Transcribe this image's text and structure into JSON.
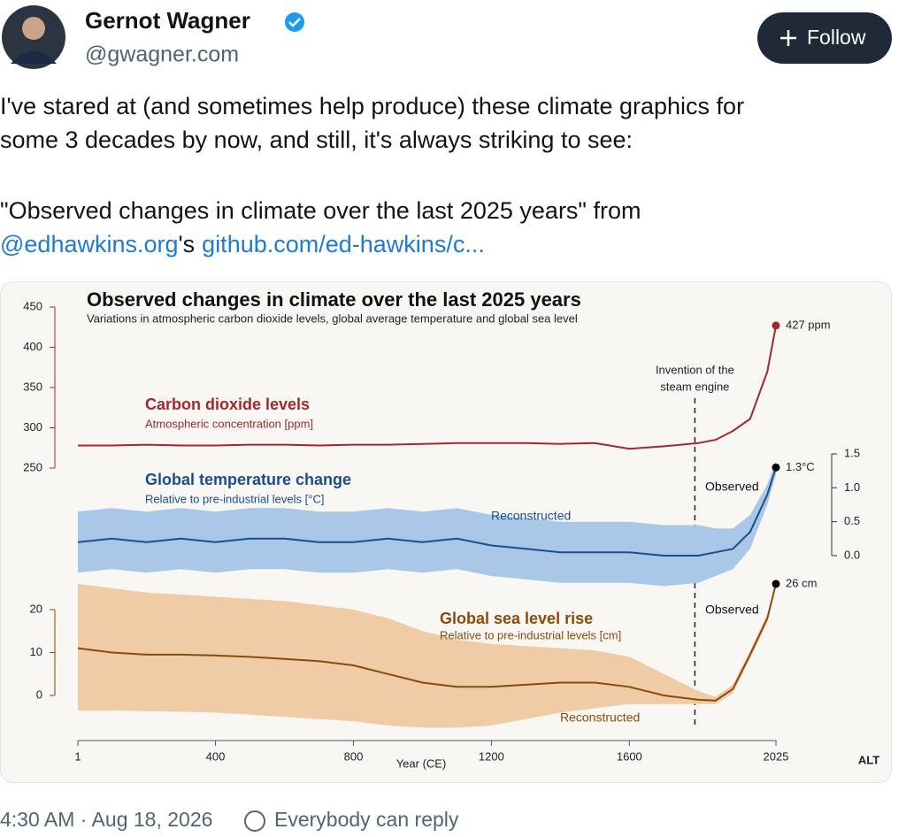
{
  "post": {
    "author": "Gernot Wagner",
    "handle": "@gwagner.com",
    "follow_button": "Follow",
    "body_lines": [
      "I've stared at (and sometimes help produce) these climate graphics for",
      "some 3 decades by now, and still, it's always striking to see:"
    ],
    "quote_line": "\"Observed changes in climate over the last 2025 years\" from",
    "link_line": [
      "@edhawkins.org",
      "'s",
      "github.com/ed-hawkins/c..."
    ],
    "timestamp": "4:30 AM · Aug 18, 2026",
    "reply_setting": "Everybody can reply"
  },
  "chart_data": {
    "type": "line",
    "title": "Observed changes in climate over the last 2025 years",
    "subtitle": "Variations in atmospheric carbon dioxide levels, global average temperature and global sea level",
    "x_label": "Year (CE)",
    "alt_badge": "ALT",
    "x": [
      1,
      100,
      200,
      300,
      400,
      500,
      600,
      700,
      800,
      900,
      1000,
      1100,
      1200,
      1300,
      1400,
      1500,
      1600,
      1700,
      1800,
      1850,
      1900,
      1950,
      2000,
      2025
    ],
    "xlim": [
      1,
      2025
    ],
    "xticks": [
      1,
      400,
      800,
      1200,
      1600,
      2025
    ],
    "ylim": [
      250,
      450
    ],
    "yticks": [
      250,
      300,
      350,
      400,
      450
    ],
    "y2lim": [
      0,
      1.5
    ],
    "y2ticks": [
      {
        "value": 0,
        "label": "0.0"
      },
      {
        "value": 0.5,
        "label": "0.5"
      },
      {
        "value": 1,
        "label": "1.0"
      },
      {
        "value": 1.5,
        "label": "1.5"
      }
    ],
    "y3lim": [
      0,
      20
    ],
    "y3ticks": [
      0,
      10,
      20
    ],
    "annotation": {
      "year": 1790,
      "lines": [
        "Invention of the",
        "steam engine"
      ]
    },
    "series": [
      {
        "name": "Carbon dioxide levels",
        "description": "Atmospheric concentration [ppm]",
        "color": "#a3282b",
        "axis": "y",
        "values": [
          278,
          278,
          279,
          278,
          278,
          279,
          279,
          278,
          279,
          279,
          280,
          281,
          281,
          281,
          280,
          281,
          274,
          277,
          281,
          285,
          296,
          311,
          370,
          427
        ],
        "end_label": "427 ppm"
      },
      {
        "name": "Global temperature change",
        "description": "Relative to pre-industrial levels [°C]",
        "color": "#1b4e8a",
        "band_color": "#a9c8e8",
        "axis": "y2",
        "values": [
          0.2,
          0.25,
          0.2,
          0.25,
          0.2,
          0.25,
          0.25,
          0.2,
          0.2,
          0.25,
          0.2,
          0.25,
          0.15,
          0.1,
          0.05,
          0.05,
          0.05,
          0,
          0,
          0.05,
          0.1,
          0.35,
          0.9,
          1.3
        ],
        "lower": [
          -0.25,
          -0.2,
          -0.25,
          -0.2,
          -0.25,
          -0.2,
          -0.2,
          -0.25,
          -0.25,
          -0.2,
          -0.25,
          -0.2,
          -0.3,
          -0.35,
          -0.4,
          -0.4,
          -0.4,
          -0.45,
          -0.4,
          -0.3,
          -0.2,
          0.1,
          0.75,
          1.2
        ],
        "upper": [
          0.65,
          0.7,
          0.65,
          0.7,
          0.65,
          0.7,
          0.7,
          0.65,
          0.65,
          0.7,
          0.65,
          0.7,
          0.6,
          0.55,
          0.5,
          0.5,
          0.5,
          0.45,
          0.45,
          0.4,
          0.4,
          0.6,
          1.05,
          1.4
        ],
        "end_label": "1.3°C",
        "reconstructed_label": "Reconstructed",
        "observed_label": "Observed"
      },
      {
        "name": "Global sea level rise",
        "description": "Relative to pre-industrial levels [cm]",
        "color": "#8a4a0c",
        "band_color": "#efcba6",
        "axis": "y3",
        "values": [
          11,
          10,
          9.5,
          9.5,
          9.3,
          9,
          8.5,
          8,
          7,
          5,
          3,
          2,
          2,
          2.5,
          3,
          3,
          2,
          0,
          -1,
          -1.2,
          1.5,
          9.5,
          18,
          26
        ],
        "lower": [
          -3.5,
          -3.5,
          -3.7,
          -3.8,
          -4,
          -4.5,
          -5,
          -5.5,
          -6,
          -7,
          -7.5,
          -7.5,
          -7,
          -5.5,
          -4,
          -3,
          -2,
          -2,
          -2,
          -2,
          0.5,
          8.5,
          17,
          25.5
        ],
        "upper": [
          26,
          25,
          24,
          23.5,
          23,
          22.5,
          22,
          21,
          20,
          18,
          15,
          13,
          12,
          11.5,
          11,
          10.5,
          9,
          5,
          1,
          -0.3,
          2.5,
          10.5,
          19,
          26.5
        ],
        "end_label": "26 cm",
        "reconstructed_label": "Reconstructed",
        "observed_label": "Observed"
      }
    ]
  }
}
